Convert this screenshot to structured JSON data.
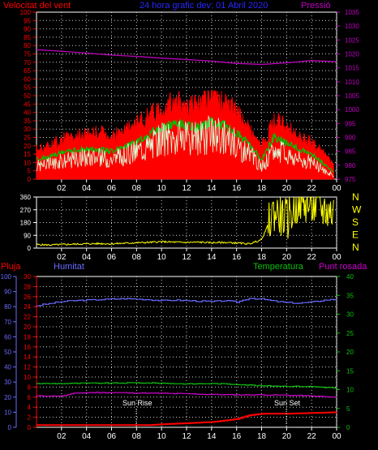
{
  "header": {
    "wind_label": "Velocitat del vent",
    "title": "24 hora grafic dev: 01 Abril 2020",
    "pressure_label": "Pressió"
  },
  "bottom_header": {
    "rain_label": "Pluja",
    "humidity_label": "Humitat",
    "temperature_label": "Temperatura",
    "dew_label": "Punt rosada"
  },
  "annotations": {
    "sunrise": "Sun Rise",
    "sunset": "Sun Set"
  },
  "colors": {
    "wind_gust": "#ff0000",
    "wind_avg": "#00c000",
    "wind_speed": "#d8ffd8",
    "pressure": "#c000c0",
    "direction": "#ffff00",
    "humidity": "#6a6aff",
    "temperature": "#10c010",
    "dew": "#d000d0",
    "rain": "#ff0000",
    "grid": "#d0d0d0",
    "axis": "#ffffff"
  },
  "chart_data": [
    {
      "type": "line",
      "title": "24 hora grafic dev: 01 Abril 2020",
      "x_ticks": [
        "02",
        "04",
        "06",
        "08",
        "10",
        "12",
        "14",
        "16",
        "18",
        "20",
        "22",
        "00"
      ],
      "xlim_hours": [
        0,
        24
      ],
      "y_left": {
        "label": "Velocitat del vent",
        "ticks": [
          0,
          5,
          10,
          15,
          20,
          25,
          30,
          35,
          40,
          45,
          50,
          55,
          60,
          65,
          70,
          75,
          80,
          85,
          90,
          95,
          100
        ],
        "lim": [
          0,
          100
        ]
      },
      "y_right": {
        "label": "Pressió",
        "ticks": [
          975,
          980,
          985,
          990,
          995,
          1000,
          1005,
          1010,
          1015,
          1020,
          1025,
          1030,
          1035
        ],
        "lim": [
          975,
          1035
        ]
      },
      "grid": true,
      "series": [
        {
          "key": "gust",
          "axis": "left",
          "hours": [
            0,
            1,
            2,
            3,
            4,
            5,
            6,
            7,
            8,
            9,
            10,
            11,
            12,
            13,
            14,
            15,
            16,
            17,
            18,
            19,
            20,
            21,
            22,
            23,
            23.8
          ],
          "values": [
            18,
            20,
            24,
            25,
            27,
            28,
            26,
            28,
            33,
            38,
            43,
            45,
            45,
            44,
            48,
            46,
            40,
            30,
            19,
            35,
            32,
            25,
            22,
            15,
            8
          ]
        },
        {
          "key": "average",
          "axis": "left",
          "hours": [
            0,
            1,
            2,
            3,
            4,
            5,
            6,
            7,
            8,
            9,
            10,
            11,
            12,
            13,
            14,
            15,
            16,
            17,
            18,
            19,
            20,
            21,
            22,
            23,
            23.8
          ],
          "values": [
            12,
            13,
            16,
            17,
            18,
            18,
            17,
            19,
            22,
            27,
            31,
            33,
            32,
            31,
            34,
            32,
            28,
            21,
            12,
            25,
            22,
            18,
            15,
            9,
            4
          ]
        },
        {
          "key": "speed",
          "axis": "left",
          "hours": [
            0,
            1,
            2,
            3,
            4,
            5,
            6,
            7,
            8,
            9,
            10,
            11,
            12,
            13,
            14,
            15,
            16,
            17,
            18,
            19,
            20,
            21,
            22,
            23,
            23.8
          ],
          "values": [
            8,
            9,
            11,
            12,
            13,
            13,
            12,
            14,
            17,
            20,
            24,
            25,
            24,
            24,
            27,
            25,
            21,
            15,
            7,
            17,
            15,
            12,
            10,
            5,
            2
          ]
        },
        {
          "key": "pressure",
          "axis": "right",
          "hours": [
            0,
            2,
            4,
            6,
            8,
            10,
            12,
            14,
            16,
            18,
            20,
            22,
            24
          ],
          "values": [
            1021.5,
            1021.0,
            1020.3,
            1019.6,
            1019.1,
            1018.5,
            1018.0,
            1017.4,
            1016.6,
            1016.2,
            1016.8,
            1017.6,
            1017.2
          ]
        }
      ]
    },
    {
      "type": "line",
      "title": "",
      "x_ticks": [
        "02",
        "04",
        "06",
        "08",
        "10",
        "12",
        "14",
        "16",
        "18",
        "20",
        "22",
        "00"
      ],
      "xlim_hours": [
        0,
        24
      ],
      "y_left": {
        "ticks": [
          0,
          90,
          180,
          270,
          360
        ],
        "lim": [
          0,
          360
        ]
      },
      "y_right": {
        "ticks": [
          "N",
          "W",
          "S",
          "E",
          "N"
        ]
      },
      "grid": true,
      "series": [
        {
          "key": "direction",
          "hours": [
            0,
            1,
            2,
            3,
            4,
            5,
            6,
            7,
            8,
            9,
            10,
            11,
            12,
            13,
            14,
            15,
            16,
            17,
            17.5,
            18,
            19,
            20,
            21,
            22,
            23,
            23.8
          ],
          "values": [
            25,
            22,
            25,
            28,
            30,
            32,
            30,
            34,
            38,
            40,
            45,
            42,
            40,
            42,
            38,
            40,
            36,
            30,
            44,
            60,
            260,
            200,
            330,
            300,
            270,
            250
          ]
        }
      ]
    },
    {
      "type": "line",
      "title": "",
      "x_ticks": [
        "02",
        "04",
        "06",
        "08",
        "10",
        "12",
        "14",
        "16",
        "18",
        "20",
        "22",
        "00"
      ],
      "xlim_hours": [
        0,
        24
      ],
      "y_pluja": {
        "label": "Pluja",
        "ticks": [
          0,
          10,
          20,
          30,
          40,
          50,
          60,
          70,
          80,
          90,
          100
        ],
        "lim": [
          0,
          100
        ]
      },
      "y_humitat": {
        "label": "Humitat",
        "ticks": [
          0,
          2,
          4,
          6,
          8,
          10,
          12,
          14,
          16,
          18,
          20,
          22,
          24,
          26,
          28,
          30
        ],
        "lim": [
          0,
          30
        ]
      },
      "y_temperatura": {
        "label": "Temperatura",
        "ticks": [
          0,
          5,
          10,
          15,
          20,
          25,
          30,
          35,
          40
        ],
        "lim": [
          0,
          40
        ]
      },
      "grid": true,
      "series": [
        {
          "key": "humidity",
          "axis": "humitat",
          "hours": [
            0,
            1,
            2,
            3,
            4,
            5,
            6,
            7,
            8,
            9,
            10,
            11,
            12,
            13,
            14,
            15,
            16,
            17,
            18,
            19,
            20,
            21,
            22,
            23,
            24
          ],
          "values": [
            24.2,
            24.6,
            25.0,
            25.2,
            25.3,
            25.4,
            25.5,
            25.6,
            25.5,
            25.4,
            25.2,
            25.3,
            25.2,
            25.1,
            25.0,
            25.2,
            24.9,
            25.7,
            25.5,
            25.1,
            24.8,
            24.7,
            24.9,
            25.3,
            25.5
          ]
        },
        {
          "key": "temperature",
          "axis": "temperatura",
          "hours": [
            0,
            2,
            4,
            6,
            8,
            10,
            12,
            14,
            16,
            18,
            20,
            22,
            24
          ],
          "values": [
            11.6,
            11.6,
            11.7,
            11.7,
            11.8,
            11.7,
            11.5,
            11.6,
            11.4,
            11.0,
            10.9,
            10.8,
            10.4
          ]
        },
        {
          "key": "dew",
          "axis": "temperatura",
          "hours": [
            0,
            2,
            3,
            4,
            6,
            8,
            10,
            12,
            14,
            16,
            18,
            20,
            22,
            24
          ],
          "values": [
            8.3,
            8.3,
            9.0,
            9.2,
            9.2,
            9.1,
            9.0,
            8.9,
            8.7,
            8.6,
            8.6,
            8.5,
            8.3,
            7.9
          ]
        },
        {
          "key": "rain",
          "axis": "pluja",
          "hours": [
            0,
            9,
            10,
            14,
            15,
            16,
            17,
            18,
            20,
            22,
            24
          ],
          "values": [
            1.5,
            1.5,
            2,
            3.5,
            4.5,
            5.5,
            8,
            9,
            9,
            9.5,
            10
          ]
        }
      ]
    }
  ]
}
